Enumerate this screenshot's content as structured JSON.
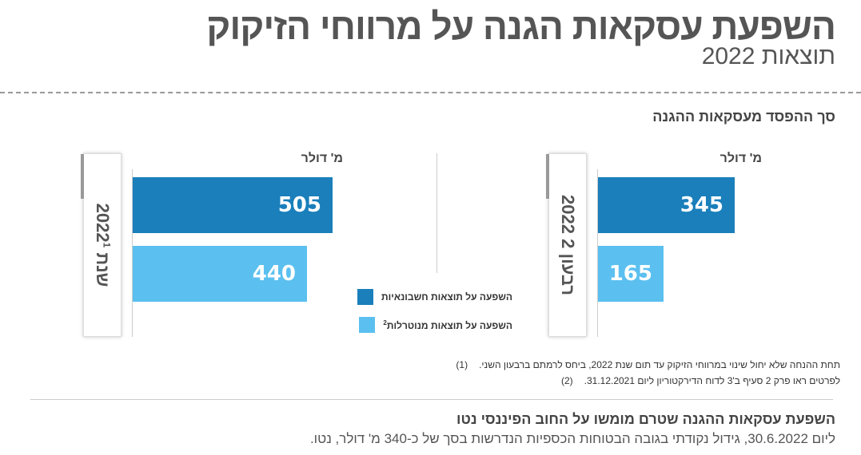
{
  "header": {
    "title": "השפעת עסקאות הגנה על מרווחי הזיקוק",
    "subtitle": "תוצאות 2022"
  },
  "section_title": "סך ההפסד מעסקאות ההגנה",
  "colors": {
    "accounting": "#1a7fbb",
    "neutralized": "#5bc0f0"
  },
  "chart_data": [
    {
      "type": "bar",
      "panel_label": "רבעון 2 2022",
      "unit_label": "מ' דולר",
      "series": [
        {
          "name": "השפעה על תוצאות חשבונאיות",
          "values": [
            345
          ]
        },
        {
          "name": "השפעה על תוצאות מנוטרלות",
          "values": [
            165
          ]
        }
      ],
      "value_labels": [
        "345",
        "165"
      ],
      "xlim": [
        0,
        600
      ]
    },
    {
      "type": "bar",
      "panel_label": "שנת 2022",
      "panel_label_sup": "1",
      "unit_label": "מ' דולר",
      "series": [
        {
          "name": "השפעה על תוצאות חשבונאיות",
          "values": [
            505
          ]
        },
        {
          "name": "השפעה על תוצאות מנוטרלות",
          "values": [
            440
          ]
        }
      ],
      "value_labels": [
        "505",
        "440"
      ],
      "xlim": [
        0,
        600
      ]
    }
  ],
  "legend": [
    {
      "label": "השפעה על תוצאות חשבונאיות"
    },
    {
      "label": "השפעה על תוצאות מנוטרלות",
      "sup": "2"
    }
  ],
  "footnotes": [
    {
      "num": "(1)",
      "text": "תחת ההנחה שלא יחול שינוי במרווחי הזיקוק עד תום שנת 2022, ביחס לרמתם ברבעון השני."
    },
    {
      "num": "(2)",
      "text": "לפרטים ראו פרק 2 סעיף ב'3 לדוח הדירקטוריון ליום 31.12.2021."
    }
  ],
  "bottom": {
    "title": "השפעת עסקאות ההגנה שטרם מומשו על החוב הפיננסי נטו",
    "text": "ליום 30.6.2022, גידול נקודתי בגובה הבטוחות הכספיות הנדרשות בסך של כ-340 מ' דולר, נטו."
  }
}
